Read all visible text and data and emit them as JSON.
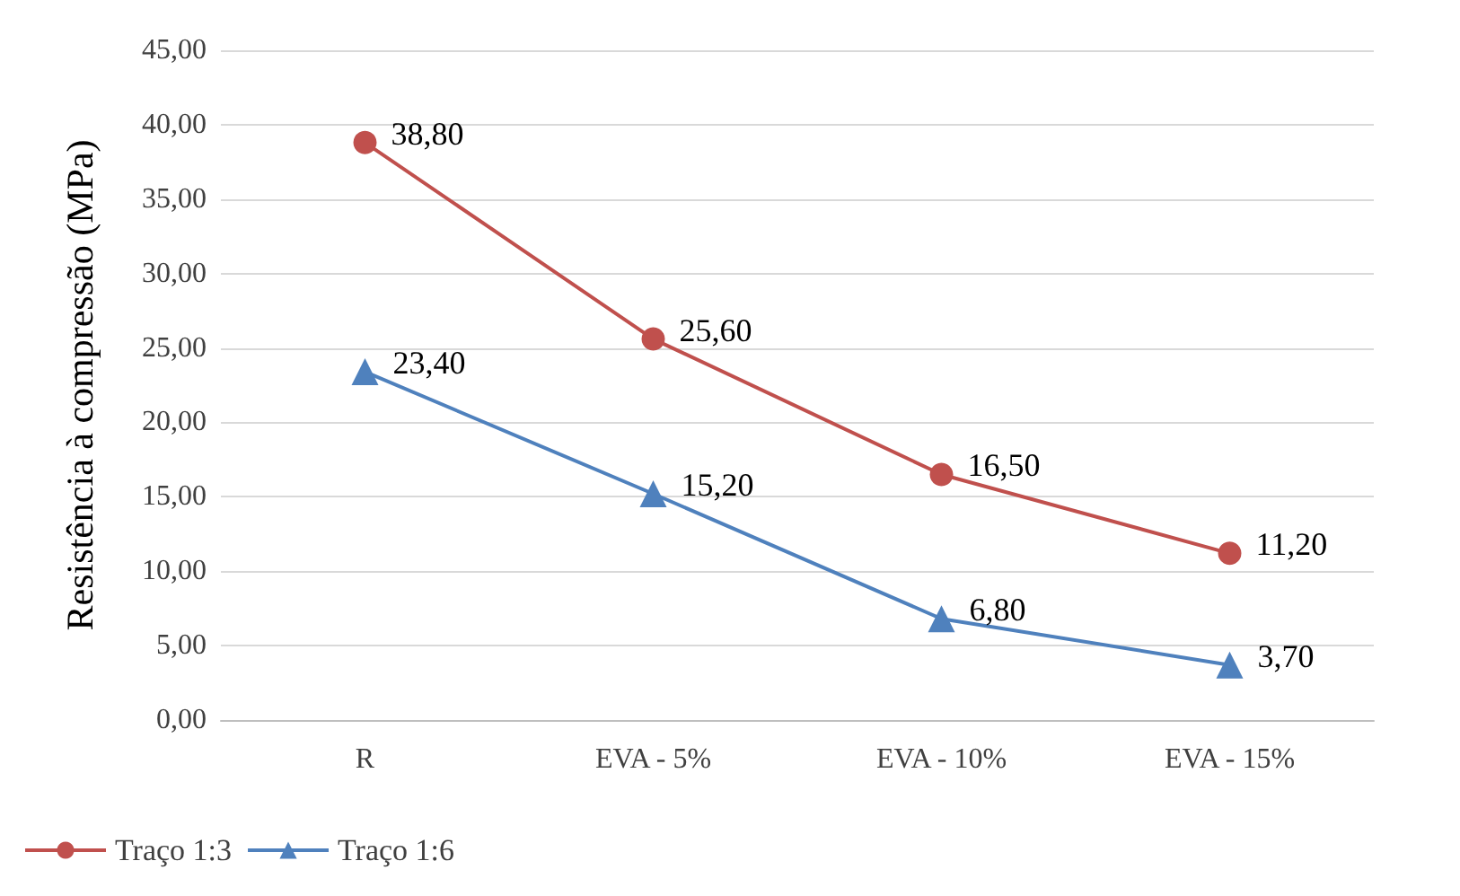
{
  "chart_data": {
    "type": "line",
    "ylabel": "Resistência à compressão (MPa)",
    "categories": [
      "R",
      "EVA - 5%",
      "EVA - 10%",
      "EVA - 15%"
    ],
    "series": [
      {
        "name": "Traço 1:3",
        "color": "#c0504d",
        "marker": "circle",
        "values": [
          38.8,
          25.6,
          16.5,
          11.2
        ],
        "value_labels": [
          "38,80",
          "25,60",
          "16,50",
          "11,20"
        ]
      },
      {
        "name": "Traço 1:6",
        "color": "#4f81bd",
        "marker": "triangle",
        "values": [
          23.4,
          15.2,
          6.8,
          3.7
        ],
        "value_labels": [
          "23,40",
          "15,20",
          "6,80",
          "3,70"
        ]
      }
    ],
    "ylim": [
      0,
      45
    ],
    "yticks": [
      {
        "value": 0,
        "label": "0,00"
      },
      {
        "value": 5,
        "label": "5,00"
      },
      {
        "value": 10,
        "label": "10,00"
      },
      {
        "value": 15,
        "label": "15,00"
      },
      {
        "value": 20,
        "label": "20,00"
      },
      {
        "value": 25,
        "label": "25,00"
      },
      {
        "value": 30,
        "label": "30,00"
      },
      {
        "value": 35,
        "label": "35,00"
      },
      {
        "value": 40,
        "label": "40,00"
      },
      {
        "value": 45,
        "label": "45,00"
      }
    ],
    "grid": "y",
    "legend": "bottom left",
    "line_style": "solid"
  }
}
